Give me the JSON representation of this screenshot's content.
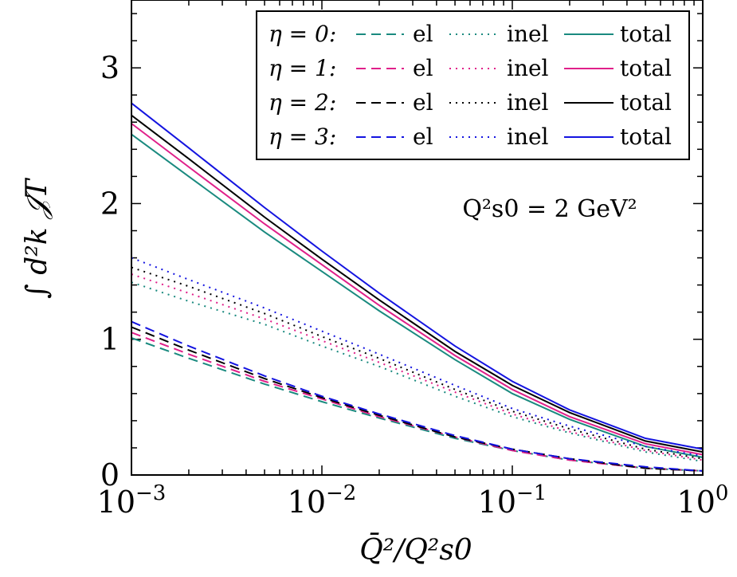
{
  "chart_data": {
    "type": "line",
    "xscale": "log",
    "xlim": [
      0.001,
      1
    ],
    "ylim": [
      0,
      3.5
    ],
    "xlabel": "Q̄²/Q²s0",
    "ylabel": "∫ d²k 𝒥T",
    "annotation": "Q²s0 = 2 GeV²",
    "x_ticks": [
      {
        "value": 0.001,
        "label": "10",
        "exp": "−3"
      },
      {
        "value": 0.01,
        "label": "10",
        "exp": "−2"
      },
      {
        "value": 0.1,
        "label": "10",
        "exp": "−1"
      },
      {
        "value": 1,
        "label": "10",
        "exp": "0"
      }
    ],
    "y_ticks": [
      {
        "value": 0,
        "label": "0"
      },
      {
        "value": 1,
        "label": "1"
      },
      {
        "value": 2,
        "label": "2"
      },
      {
        "value": 3,
        "label": "3"
      }
    ],
    "legend": {
      "position": "top-right",
      "rows": [
        {
          "eta_label": "η = 0:",
          "el": "el",
          "inel": "inel",
          "total": "total",
          "color": "#1a8a7f"
        },
        {
          "eta_label": "η = 1:",
          "el": "el",
          "inel": "inel",
          "total": "total",
          "color": "#e0208a"
        },
        {
          "eta_label": "η = 2:",
          "el": "el",
          "inel": "inel",
          "total": "total",
          "color": "#000000"
        },
        {
          "eta_label": "η = 3:",
          "el": "el",
          "inel": "inel",
          "total": "total",
          "color": "#1414e0"
        }
      ]
    },
    "x": [
      0.001,
      0.002,
      0.005,
      0.01,
      0.02,
      0.05,
      0.1,
      0.2,
      0.5,
      1.0
    ],
    "series": [
      {
        "eta": 0,
        "kind": "el",
        "color": "#1a8a7f",
        "values": [
          1.01,
          0.86,
          0.67,
          0.54,
          0.42,
          0.27,
          0.18,
          0.11,
          0.05,
          0.03
        ]
      },
      {
        "eta": 0,
        "kind": "inel",
        "color": "#1a8a7f",
        "values": [
          1.42,
          1.28,
          1.11,
          0.95,
          0.8,
          0.58,
          0.43,
          0.31,
          0.17,
          0.1
        ]
      },
      {
        "eta": 0,
        "kind": "total",
        "color": "#1a8a7f",
        "values": [
          2.51,
          2.2,
          1.79,
          1.5,
          1.21,
          0.85,
          0.6,
          0.41,
          0.21,
          0.13
        ]
      },
      {
        "eta": 1,
        "kind": "el",
        "color": "#e0208a",
        "values": [
          1.05,
          0.89,
          0.69,
          0.56,
          0.43,
          0.28,
          0.18,
          0.11,
          0.05,
          0.03
        ]
      },
      {
        "eta": 1,
        "kind": "inel",
        "color": "#e0208a",
        "values": [
          1.48,
          1.34,
          1.15,
          0.99,
          0.83,
          0.61,
          0.45,
          0.32,
          0.18,
          0.11
        ]
      },
      {
        "eta": 1,
        "kind": "total",
        "color": "#e0208a",
        "values": [
          2.59,
          2.27,
          1.85,
          1.55,
          1.25,
          0.88,
          0.63,
          0.43,
          0.23,
          0.15
        ]
      },
      {
        "eta": 2,
        "kind": "el",
        "color": "#000000",
        "values": [
          1.09,
          0.92,
          0.71,
          0.57,
          0.44,
          0.28,
          0.19,
          0.12,
          0.05,
          0.03
        ]
      },
      {
        "eta": 2,
        "kind": "inel",
        "color": "#000000",
        "values": [
          1.53,
          1.39,
          1.19,
          1.02,
          0.86,
          0.63,
          0.47,
          0.34,
          0.19,
          0.12
        ]
      },
      {
        "eta": 2,
        "kind": "total",
        "color": "#000000",
        "values": [
          2.65,
          2.33,
          1.9,
          1.59,
          1.29,
          0.91,
          0.66,
          0.46,
          0.25,
          0.17
        ]
      },
      {
        "eta": 3,
        "kind": "el",
        "color": "#1414e0",
        "values": [
          1.13,
          0.95,
          0.73,
          0.58,
          0.45,
          0.29,
          0.19,
          0.12,
          0.06,
          0.03
        ]
      },
      {
        "eta": 3,
        "kind": "inel",
        "color": "#1414e0",
        "values": [
          1.6,
          1.44,
          1.23,
          1.06,
          0.89,
          0.66,
          0.49,
          0.36,
          0.21,
          0.14
        ]
      },
      {
        "eta": 3,
        "kind": "total",
        "color": "#1414e0",
        "values": [
          2.74,
          2.41,
          1.97,
          1.65,
          1.34,
          0.95,
          0.69,
          0.48,
          0.27,
          0.19
        ]
      }
    ]
  }
}
